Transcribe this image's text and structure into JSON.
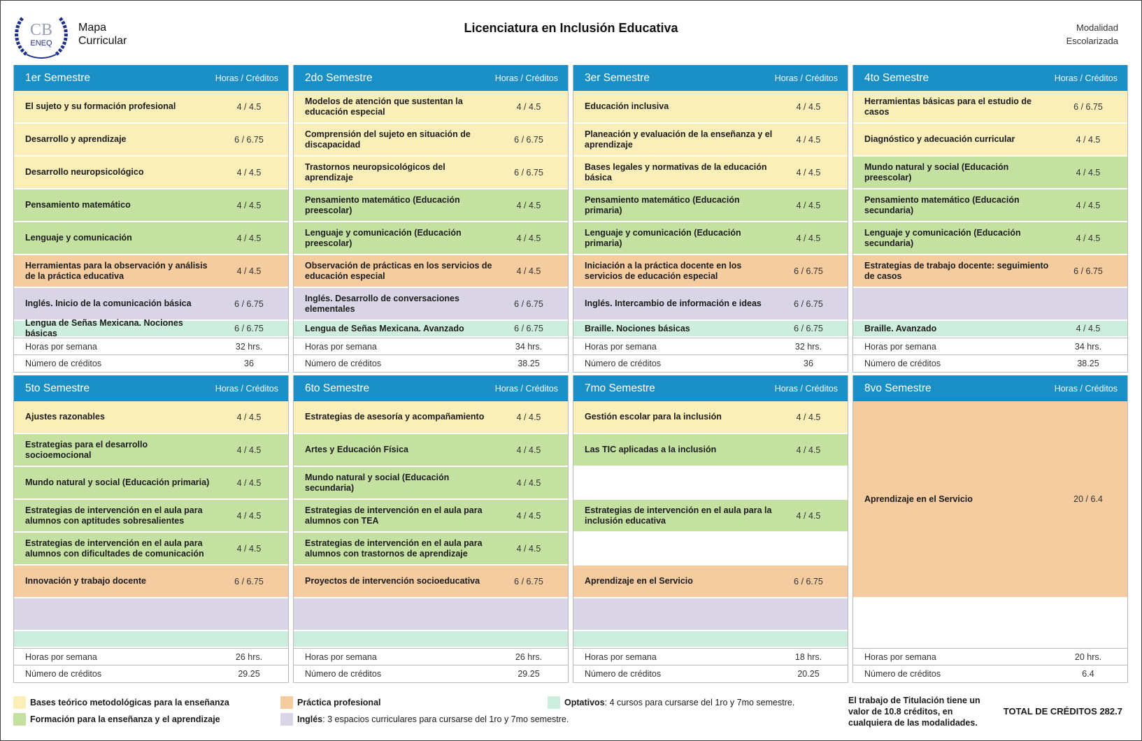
{
  "header": {
    "logo": {
      "initials": "CB",
      "school": "ENEQ"
    },
    "map_title": "Mapa Curricular",
    "title": "Licenciatura en Inclusión Educativa",
    "modality": "Modalidad Escolarizada"
  },
  "column_label": "Horas / Créditos",
  "semesters": [
    {
      "name": "1er Semestre",
      "rows": [
        {
          "subject": "El sujeto y su formación profesional",
          "load": "4 / 4.5",
          "type": "bases"
        },
        {
          "subject": "Desarrollo y aprendizaje",
          "load": "6 / 6.75",
          "type": "bases"
        },
        {
          "subject": "Desarrollo neuropsicológico",
          "load": "4 / 4.5",
          "type": "bases"
        },
        {
          "subject": "Pensamiento matemático",
          "load": "4 / 4.5",
          "type": "formacion"
        },
        {
          "subject": "Lenguaje y comunicación",
          "load": "4 / 4.5",
          "type": "formacion"
        },
        {
          "subject": "Herramientas para la observación y análisis de la práctica educativa",
          "load": "4 / 4.5",
          "type": "practica"
        },
        {
          "subject": "Inglés. Inicio de la comunicación básica",
          "load": "6 / 6.75",
          "type": "ingles"
        },
        {
          "subject": "Lengua de Señas Mexicana. Nociones básicas",
          "load": "6 / 6.75",
          "type": "optativo"
        }
      ],
      "hours_label": "Horas por semana",
      "hours": "32 hrs.",
      "credits_label": "Número de créditos",
      "credits": "36"
    },
    {
      "name": "2do Semestre",
      "rows": [
        {
          "subject": "Modelos de atención que sustentan la educación especial",
          "load": "4 / 4.5",
          "type": "bases"
        },
        {
          "subject": "Comprensión del sujeto en situación de discapacidad",
          "load": "6 / 6.75",
          "type": "bases"
        },
        {
          "subject": "Trastornos neuropsicológicos del aprendizaje",
          "load": "6 / 6.75",
          "type": "bases"
        },
        {
          "subject": "Pensamiento matemático (Educación preescolar)",
          "load": "4 / 4.5",
          "type": "formacion"
        },
        {
          "subject": "Lenguaje y comunicación (Educación preescolar)",
          "load": "4 / 4.5",
          "type": "formacion"
        },
        {
          "subject": "Observación de prácticas en los servicios de educación especial",
          "load": "4 / 4.5",
          "type": "practica"
        },
        {
          "subject": "Inglés. Desarrollo de conversaciones elementales",
          "load": "6 / 6.75",
          "type": "ingles"
        },
        {
          "subject": "Lengua de Señas Mexicana. Avanzado",
          "load": "6 / 6.75",
          "type": "optativo"
        }
      ],
      "hours_label": "Horas por semana",
      "hours": "34 hrs.",
      "credits_label": "Número de créditos",
      "credits": "38.25"
    },
    {
      "name": "3er Semestre",
      "rows": [
        {
          "subject": "Educación inclusiva",
          "load": "4 / 4.5",
          "type": "bases"
        },
        {
          "subject": "Planeación y evaluación de la enseñanza y el aprendizaje",
          "load": "4 / 4.5",
          "type": "bases"
        },
        {
          "subject": "Bases legales y normativas de la educación básica",
          "load": "4 / 4.5",
          "type": "bases"
        },
        {
          "subject": "Pensamiento matemático (Educación primaria)",
          "load": "4 / 4.5",
          "type": "formacion"
        },
        {
          "subject": "Lenguaje y comunicación (Educación primaria)",
          "load": "4 / 4.5",
          "type": "formacion"
        },
        {
          "subject": "Iniciación a la práctica docente en los servicios de educación especial",
          "load": "6 / 6.75",
          "type": "practica"
        },
        {
          "subject": "Inglés. Intercambio de información e ideas",
          "load": "6 / 6.75",
          "type": "ingles"
        },
        {
          "subject": "Braille. Nociones básicas",
          "load": "6 / 6.75",
          "type": "optativo"
        }
      ],
      "hours_label": "Horas por semana",
      "hours": "32 hrs.",
      "credits_label": "Número de créditos",
      "credits": "36"
    },
    {
      "name": "4to Semestre",
      "rows": [
        {
          "subject": "Herramientas básicas para el estudio de casos",
          "load": "6 / 6.75",
          "type": "bases"
        },
        {
          "subject": "Diagnóstico y adecuación curricular",
          "load": "4 / 4.5",
          "type": "bases"
        },
        {
          "subject": "Mundo natural y social (Educación preescolar)",
          "load": "4 / 4.5",
          "type": "formacion"
        },
        {
          "subject": "Pensamiento matemático (Educación secundaria)",
          "load": "4 / 4.5",
          "type": "formacion"
        },
        {
          "subject": "Lenguaje y comunicación (Educación secundaria)",
          "load": "4 / 4.5",
          "type": "formacion"
        },
        {
          "subject": "Estrategias de trabajo docente: seguimiento de casos",
          "load": "6 / 6.75",
          "type": "practica"
        },
        {
          "type": "ingles"
        },
        {
          "subject": "Braille. Avanzado",
          "load": "4 / 4.5",
          "type": "optativo"
        }
      ],
      "hours_label": "Horas por semana",
      "hours": "34 hrs.",
      "credits_label": "Número de créditos",
      "credits": "38.25"
    },
    {
      "name": "5to Semestre",
      "rows": [
        {
          "subject": "Ajustes razonables",
          "load": "4 / 4.5",
          "type": "bases"
        },
        {
          "subject": "Estrategias para el desarrollo socioemocional",
          "load": "4 / 4.5",
          "type": "formacion"
        },
        {
          "subject": "Mundo natural y social (Educación primaria)",
          "load": "4 / 4.5",
          "type": "formacion"
        },
        {
          "subject": "Estrategias de intervención en el aula para alumnos con aptitudes sobresalientes",
          "load": "4 / 4.5",
          "type": "formacion"
        },
        {
          "subject": "Estrategias de intervención en el aula para alumnos con dificultades de comunicación",
          "load": "4 / 4.5",
          "type": "formacion"
        },
        {
          "subject": "Innovación y trabajo docente",
          "load": "6 / 6.75",
          "type": "practica"
        },
        {
          "type": "ingles"
        },
        {
          "type": "optativo"
        }
      ],
      "hours_label": "Horas por semana",
      "hours": "26 hrs.",
      "credits_label": "Número de créditos",
      "credits": "29.25"
    },
    {
      "name": "6to Semestre",
      "rows": [
        {
          "subject": "Estrategias de asesoría y acompañamiento",
          "load": "4 / 4.5",
          "type": "bases"
        },
        {
          "subject": "Artes y Educación Física",
          "load": "4 / 4.5",
          "type": "formacion"
        },
        {
          "subject": "Mundo natural y social (Educación secundaria)",
          "load": "4 / 4.5",
          "type": "formacion"
        },
        {
          "subject": "Estrategias de intervención en el aula para alumnos con TEA",
          "load": "4 / 4.5",
          "type": "formacion"
        },
        {
          "subject": "Estrategias de intervención en el aula para alumnos con trastornos de aprendizaje",
          "load": "4 / 4.5",
          "type": "formacion"
        },
        {
          "subject": "Proyectos de intervención socioeducativa",
          "load": "6 / 6.75",
          "type": "practica"
        },
        {
          "type": "ingles"
        },
        {
          "type": "optativo"
        }
      ],
      "hours_label": "Horas por semana",
      "hours": "26 hrs.",
      "credits_label": "Número de créditos",
      "credits": "29.25"
    },
    {
      "name": "7mo Semestre",
      "rows": [
        {
          "subject": "Gestión escolar para la inclusión",
          "load": "4 / 4.5",
          "type": "bases"
        },
        {
          "subject": "Las TIC aplicadas a la inclusión",
          "load": "4 / 4.5",
          "type": "formacion"
        },
        null,
        {
          "subject": "Estrategias de intervención en el aula para la inclusión educativa",
          "load": "4 / 4.5",
          "type": "formacion"
        },
        null,
        {
          "subject": "Aprendizaje en el Servicio",
          "load": "6 / 6.75",
          "type": "practica"
        },
        {
          "type": "ingles"
        },
        {
          "type": "optativo"
        }
      ],
      "hours_label": "Horas por semana",
      "hours": "18 hrs.",
      "credits_label": "Número de créditos",
      "credits": "20.25"
    },
    {
      "name": "8vo Semestre",
      "rows": [
        {
          "subject": "Aprendizaje en el Servicio",
          "load": "20 / 6.4",
          "type": "practica",
          "span": 6
        },
        null,
        null
      ],
      "hours_label": "Horas por semana",
      "hours": "20 hrs.",
      "credits_label": "Número de créditos",
      "credits": "6.4"
    }
  ],
  "legend": [
    {
      "type": "bases",
      "label": "Bases teórico metodológicas para la enseñanza"
    },
    {
      "type": "formacion",
      "label": "Formación para la enseñanza y el aprendizaje"
    },
    {
      "type": "practica",
      "label": "Práctica profesional"
    },
    {
      "type": "ingles",
      "label": "Inglés",
      "note": ": 3 espacios curriculares para cursarse del 1ro y 7mo semestre."
    },
    {
      "type": "optativo",
      "label": "Optativos",
      "note": ": 4 cursos para cursarse del 1ro y 7mo semestre."
    }
  ],
  "titulacion": "El trabajo de Titulación tiene un valor de 10.8 créditos, en cualquiera de las modalidades.",
  "total": "TOTAL DE CRÉDITOS 282.7"
}
